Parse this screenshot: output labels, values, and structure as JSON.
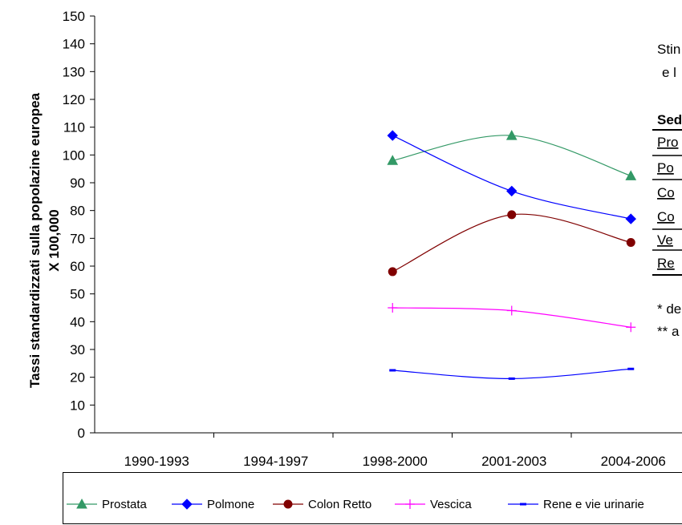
{
  "chart_data": {
    "type": "line",
    "categories": [
      "1990-1993",
      "1994-1997",
      "1998-2000",
      "2001-2003",
      "2004-2006"
    ],
    "ylabel": [
      "Tassi standardizzati sulla popolazine europea",
      "X 100,000"
    ],
    "xlabel": "",
    "ylim": [
      0,
      150
    ],
    "ytick_step": 10,
    "grid": false,
    "legend_position": "bottom",
    "series": [
      {
        "name": "Prostata",
        "color": "#339966",
        "marker": "triangle",
        "values": [
          null,
          null,
          98,
          107,
          92.5
        ]
      },
      {
        "name": "Polmone",
        "color": "#0000ff",
        "marker": "diamond",
        "values": [
          null,
          null,
          107,
          87,
          77
        ]
      },
      {
        "name": "Colon Retto",
        "color": "#800000",
        "marker": "circle",
        "values": [
          null,
          null,
          58,
          78.5,
          68.5
        ]
      },
      {
        "name": "Vescica",
        "color": "#ff00ff",
        "marker": "plus",
        "values": [
          null,
          null,
          45,
          44,
          38
        ]
      },
      {
        "name": "Rene e vie urinarie",
        "color": "#0000ff",
        "marker": "dash",
        "values": [
          null,
          null,
          22.5,
          19.5,
          23
        ]
      }
    ]
  },
  "side_panel": {
    "lines": [
      {
        "text": "Stin",
        "bold": false,
        "underline": false
      },
      {
        "text": "e l",
        "bold": false,
        "underline": false
      },
      {
        "text": "Sed",
        "bold": true,
        "underline": false
      },
      {
        "text": "Pro",
        "bold": false,
        "underline": true
      },
      {
        "text": "Po",
        "bold": false,
        "underline": true
      },
      {
        "text": "Co",
        "bold": false,
        "underline": true
      },
      {
        "text": "Co",
        "bold": false,
        "underline": true
      },
      {
        "text": "Ve",
        "bold": false,
        "underline": true
      },
      {
        "text": "Re",
        "bold": false,
        "underline": true
      },
      {
        "text": "* de",
        "bold": false,
        "underline": false
      },
      {
        "text": "** a",
        "bold": false,
        "underline": false
      }
    ]
  }
}
